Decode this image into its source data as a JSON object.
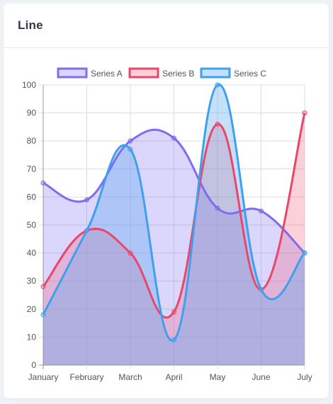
{
  "card": {
    "title": "Line"
  },
  "chart_data": {
    "type": "area",
    "title": "",
    "categories": [
      "January",
      "February",
      "March",
      "April",
      "May",
      "June",
      "July"
    ],
    "ylim": [
      0,
      100
    ],
    "yticks": [
      0,
      10,
      20,
      30,
      40,
      50,
      60,
      70,
      80,
      90,
      100
    ],
    "grid": true,
    "legend_position": "top",
    "series": [
      {
        "name": "Series A",
        "values": [
          65,
          59,
          80,
          81,
          56,
          55,
          40
        ],
        "color": "#7f6cf0",
        "fill": "rgba(127,108,240,0.28)"
      },
      {
        "name": "Series B",
        "values": [
          28,
          48,
          40,
          19,
          86,
          27,
          90
        ],
        "color": "#e8476a",
        "fill": "rgba(240,100,130,0.30)"
      },
      {
        "name": "Series C",
        "values": [
          18,
          48,
          77,
          9,
          100,
          27,
          40
        ],
        "color": "#3fa0f0",
        "fill": "rgba(90,170,240,0.35)"
      }
    ]
  }
}
